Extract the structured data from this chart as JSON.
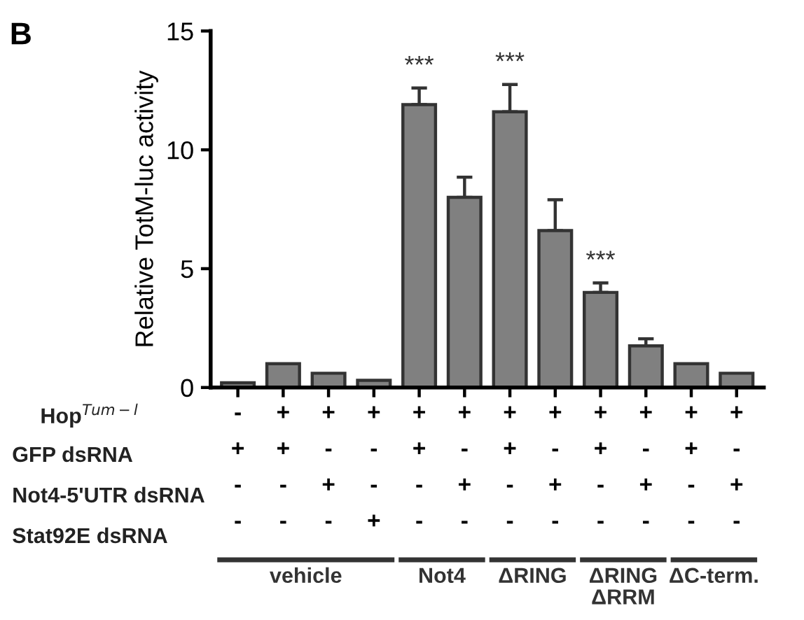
{
  "chart_data": {
    "type": "bar",
    "title": "B",
    "ylabel": "Relative TotM-luc activity",
    "categories": [
      "-\n+\n-\n-",
      "+\n+\n-\n-",
      "+\n-\n+\n-",
      "+\n-\n-\n+",
      "+\n+\n-\n-",
      "+\n-\n+\n-",
      "+\n+\n-\n-",
      "+\n-\n+\n-",
      "+\n+\n-\n-",
      "+\n-\n+\n-",
      "+\n+\n-\n-",
      "+\n-\n+\n-"
    ],
    "values": [
      0.2,
      1.0,
      0.6,
      0.3,
      11.9,
      8.0,
      11.6,
      6.6,
      4.0,
      1.75,
      1.0,
      0.6
    ],
    "errors": [
      null,
      null,
      null,
      null,
      [
        11.9,
        12.6
      ],
      [
        8.0,
        8.85
      ],
      [
        11.6,
        12.75
      ],
      [
        6.6,
        7.9
      ],
      [
        4.0,
        4.4
      ],
      [
        1.75,
        2.05
      ],
      null,
      null
    ],
    "value_labels": [
      null,
      null,
      null,
      null,
      "***",
      null,
      "***",
      null,
      "***",
      null,
      null,
      null
    ],
    "color": "#808080",
    "ylim": [
      0,
      15
    ],
    "yticks": [
      0,
      5,
      10,
      15
    ],
    "grid": false,
    "legend": false,
    "annotations": [
      "Hop$^{Tum−l}$",
      "GFP dsRNA",
      "Not4-5'UTR dsRNA",
      "Stat92E dsRNA",
      "vehicle",
      "Not4",
      "ΔRING",
      "ΔRING\nΔRRM",
      "ΔC-term."
    ]
  }
}
